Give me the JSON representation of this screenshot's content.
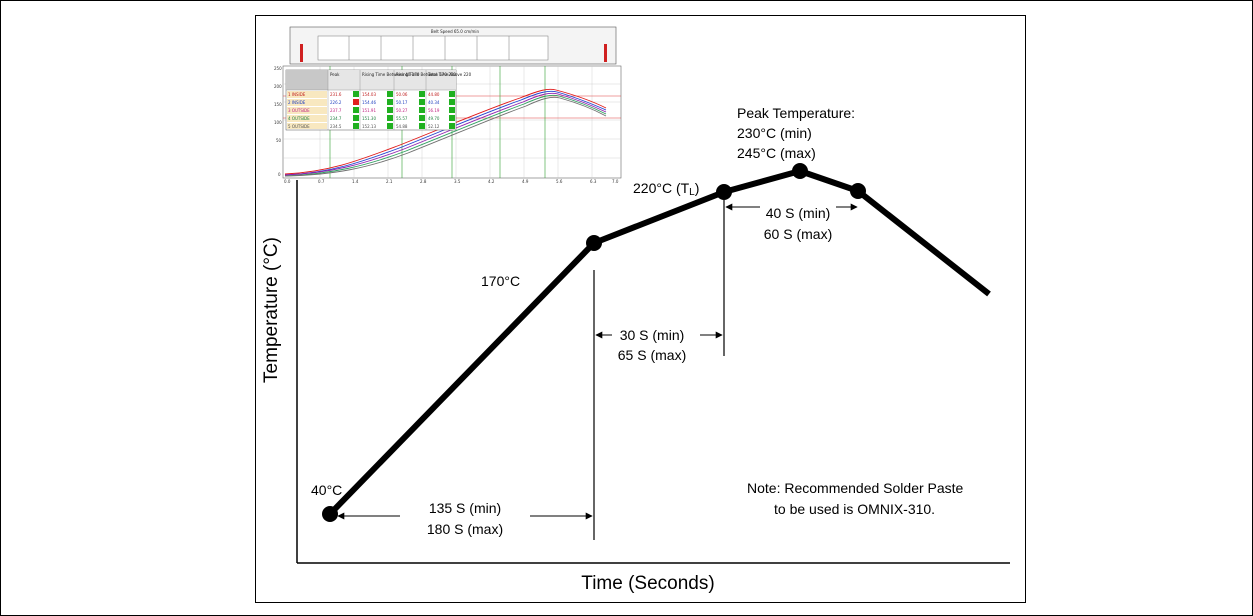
{
  "axes": {
    "x_title": "Time (Seconds)",
    "y_title": "Temperature (°C)"
  },
  "labels": {
    "start_temp": "40°C",
    "soak_temp": "170°C",
    "liquidus_temp": "220°C (T",
    "liquidus_sub": "L",
    "liquidus_close": ")",
    "peak_title": "Peak Temperature:",
    "peak_min": "230°C (min)",
    "peak_max": "245°C (max)",
    "preheat_min": "135 S (min)",
    "preheat_max": "180 S (max)",
    "soak_min": "30 S (min)",
    "soak_max": "65 S (max)",
    "above_liquidus_min": "40 S (min)",
    "above_liquidus_max": "60 S (max)"
  },
  "note": {
    "line1": "Note: Recommended Solder Paste",
    "line2": "to be used is OMNIX-310."
  },
  "inset": {
    "title": "Belt Speed 65.0 cm/min",
    "headers": [
      "Peak",
      "Rising Time Between 40-170",
      "Rising Time Between 170-220",
      "Total Time Above 220"
    ],
    "rows": [
      {
        "name": "1 INSIDE",
        "peak": "231.6",
        "rise1": "154.03",
        "rise2": "50.06",
        "total": "44.80"
      },
      {
        "name": "2 INSIDE",
        "peak": "226.2",
        "rise1": "154.46",
        "rise2": "50.17",
        "total": "40.34"
      },
      {
        "name": "3 OUTSIDE",
        "peak": "237.7",
        "rise1": "151.91",
        "rise2": "50.27",
        "total": "56.19"
      },
      {
        "name": "4 OUTSIDE",
        "peak": "234.7",
        "rise1": "151.30",
        "rise2": "55.57",
        "total": "49.70"
      },
      {
        "name": "5 OUTSIDE",
        "peak": "234.5",
        "rise1": "152.13",
        "rise2": "54.88",
        "total": "52.12"
      }
    ],
    "y_ticks": [
      "250",
      "200",
      "150",
      "100",
      "50",
      "0"
    ],
    "x_ticks": [
      "0.0",
      "0.7",
      "1.4",
      "2.1",
      "2.8",
      "3.5",
      "4.2",
      "4.9",
      "5.6",
      "6.3",
      "7.0"
    ]
  }
}
